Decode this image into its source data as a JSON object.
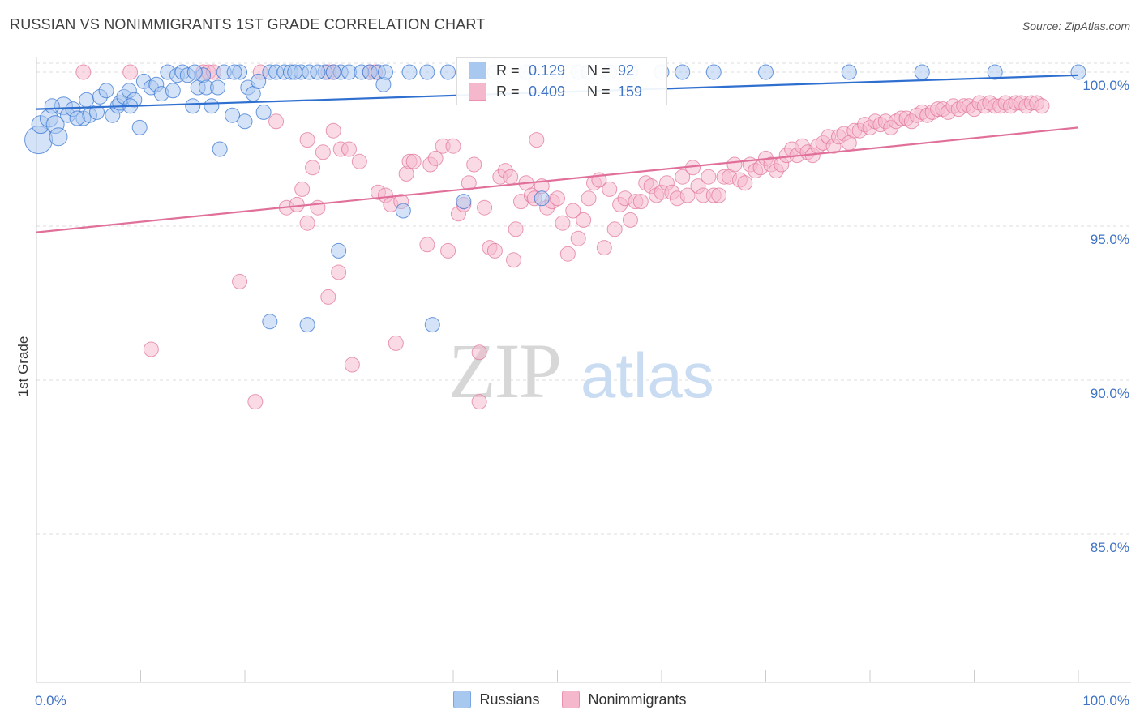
{
  "title": "RUSSIAN VS NONIMMIGRANTS 1ST GRADE CORRELATION CHART",
  "source": "Source: ZipAtlas.com",
  "watermark": {
    "zip": "ZIP",
    "atlas": "atlas"
  },
  "colors": {
    "blue_fill": "#a9c8f0",
    "blue_line": "#2f6fd0",
    "pink_fill": "#f5b7cb",
    "pink_line": "#e0709a",
    "axis_text": "#3f73c5",
    "grid": "#dddddd"
  },
  "stats": [
    {
      "r_label": "R =",
      "r_value": "0.129",
      "n_label": "N =",
      "n_value": "92"
    },
    {
      "r_label": "R =",
      "r_value": "0.409",
      "n_label": "N =",
      "n_value": "159"
    }
  ],
  "legend": [
    {
      "label": "Russians"
    },
    {
      "label": "Nonimmigrants"
    }
  ],
  "chart_data": {
    "type": "scatter",
    "title": "RUSSIAN VS NONIMMIGRANTS 1ST GRADE CORRELATION CHART",
    "xlabel": "",
    "ylabel": "1st Grade",
    "xlim": [
      0,
      100
    ],
    "ylim": [
      80.5,
      100.5
    ],
    "x_tick_labels": [
      "0.0%",
      "100.0%"
    ],
    "y_ticks": [
      85,
      90,
      95,
      100
    ],
    "y_tick_labels": [
      "85.0%",
      "90.0%",
      "95.0%",
      "100.0%"
    ],
    "grid": true,
    "legend_position": "bottom-center",
    "series": [
      {
        "name": "Russians",
        "trend": {
          "x": [
            0,
            100
          ],
          "y": [
            98.8,
            99.9
          ]
        },
        "points": [
          [
            0.2,
            97.8
          ],
          [
            0.4,
            98.3
          ],
          [
            1.2,
            98.5
          ],
          [
            1.8,
            98.3
          ],
          [
            2.1,
            97.9
          ],
          [
            2.6,
            98.9
          ],
          [
            3.0,
            98.6
          ],
          [
            3.5,
            98.8
          ],
          [
            4.5,
            98.5
          ],
          [
            4.8,
            99.1
          ],
          [
            5.1,
            98.6
          ],
          [
            5.8,
            98.7
          ],
          [
            6.1,
            99.2
          ],
          [
            6.7,
            99.4
          ],
          [
            7.3,
            98.6
          ],
          [
            7.8,
            98.9
          ],
          [
            8.0,
            99.0
          ],
          [
            8.4,
            99.2
          ],
          [
            8.9,
            99.4
          ],
          [
            9.4,
            99.1
          ],
          [
            9.9,
            98.2
          ],
          [
            10.3,
            99.7
          ],
          [
            11.0,
            99.5
          ],
          [
            11.5,
            99.6
          ],
          [
            12.0,
            99.3
          ],
          [
            12.6,
            100.0
          ],
          [
            13.1,
            99.4
          ],
          [
            13.5,
            99.9
          ],
          [
            14.0,
            100.0
          ],
          [
            14.5,
            99.9
          ],
          [
            15.0,
            98.9
          ],
          [
            15.5,
            99.5
          ],
          [
            16.0,
            99.9
          ],
          [
            16.3,
            99.5
          ],
          [
            16.8,
            98.9
          ],
          [
            17.4,
            99.5
          ],
          [
            17.6,
            97.5
          ],
          [
            18.0,
            100.0
          ],
          [
            18.8,
            98.6
          ],
          [
            19.5,
            100.0
          ],
          [
            20.0,
            98.4
          ],
          [
            20.3,
            99.5
          ],
          [
            20.8,
            99.3
          ],
          [
            21.3,
            99.7
          ],
          [
            21.8,
            98.7
          ],
          [
            22.4,
            100.0
          ],
          [
            23.0,
            100.0
          ],
          [
            23.8,
            100.0
          ],
          [
            24.4,
            100.0
          ],
          [
            25.4,
            100.0
          ],
          [
            26.2,
            100.0
          ],
          [
            27.7,
            100.0
          ],
          [
            29.2,
            100.0
          ],
          [
            29.0,
            94.2
          ],
          [
            30.0,
            100.0
          ],
          [
            31.2,
            100.0
          ],
          [
            32.0,
            100.0
          ],
          [
            32.8,
            100.0
          ],
          [
            33.3,
            99.6
          ],
          [
            33.5,
            100.0
          ],
          [
            35.8,
            100.0
          ],
          [
            35.2,
            95.5
          ],
          [
            37.5,
            100.0
          ],
          [
            38.0,
            91.8
          ],
          [
            39.5,
            100.0
          ],
          [
            41.0,
            95.8
          ],
          [
            44.0,
            100.0
          ],
          [
            47.0,
            100.0
          ],
          [
            48.5,
            95.9
          ],
          [
            50.0,
            100.0
          ],
          [
            52.0,
            100.0
          ],
          [
            53.0,
            100.0
          ],
          [
            55.0,
            100.0
          ],
          [
            57.0,
            100.0
          ],
          [
            60.0,
            100.0
          ],
          [
            62.0,
            100.0
          ],
          [
            65.0,
            100.0
          ],
          [
            70.0,
            100.0
          ],
          [
            78.0,
            100.0
          ],
          [
            85.0,
            100.0
          ],
          [
            92.0,
            100.0
          ],
          [
            100.0,
            100.0
          ],
          [
            22.4,
            91.9
          ],
          [
            26.0,
            91.8
          ],
          [
            1.5,
            98.9
          ],
          [
            3.9,
            98.5
          ],
          [
            9.0,
            98.9
          ],
          [
            15.2,
            100.0
          ],
          [
            19.0,
            100.0
          ],
          [
            24.8,
            100.0
          ],
          [
            27.0,
            100.0
          ],
          [
            28.5,
            100.0
          ]
        ]
      },
      {
        "name": "Nonimmigrants",
        "trend": {
          "x": [
            0,
            100
          ],
          "y": [
            94.8,
            98.2
          ]
        },
        "points": [
          [
            4.5,
            100.0
          ],
          [
            9.0,
            100.0
          ],
          [
            11.0,
            91.0
          ],
          [
            16.0,
            100.0
          ],
          [
            16.5,
            100.0
          ],
          [
            17.0,
            100.0
          ],
          [
            19.5,
            93.2
          ],
          [
            21.0,
            89.3
          ],
          [
            21.5,
            100.0
          ],
          [
            23.0,
            98.4
          ],
          [
            24.0,
            95.6
          ],
          [
            25.0,
            95.7
          ],
          [
            25.5,
            96.2
          ],
          [
            26.0,
            95.1
          ],
          [
            26.5,
            96.9
          ],
          [
            26.0,
            97.8
          ],
          [
            27.0,
            95.6
          ],
          [
            27.5,
            97.4
          ],
          [
            28.0,
            100.0
          ],
          [
            28.5,
            100.0
          ],
          [
            28.0,
            92.7
          ],
          [
            29.0,
            93.5
          ],
          [
            28.5,
            98.1
          ],
          [
            29.2,
            97.5
          ],
          [
            30.0,
            97.5
          ],
          [
            30.3,
            90.5
          ],
          [
            31.0,
            97.1
          ],
          [
            32.0,
            100.0
          ],
          [
            32.5,
            100.0
          ],
          [
            32.8,
            96.1
          ],
          [
            33.5,
            96.0
          ],
          [
            34.0,
            95.7
          ],
          [
            34.5,
            91.2
          ],
          [
            35.0,
            95.8
          ],
          [
            35.5,
            96.7
          ],
          [
            35.8,
            97.1
          ],
          [
            36.2,
            97.1
          ],
          [
            37.5,
            94.4
          ],
          [
            37.8,
            97.0
          ],
          [
            38.3,
            97.2
          ],
          [
            39.0,
            97.6
          ],
          [
            39.5,
            94.2
          ],
          [
            40.0,
            97.6
          ],
          [
            40.5,
            95.4
          ],
          [
            41.0,
            95.7
          ],
          [
            41.5,
            96.4
          ],
          [
            42.0,
            97.0
          ],
          [
            42.5,
            90.9
          ],
          [
            42.5,
            89.3
          ],
          [
            43.0,
            95.6
          ],
          [
            43.5,
            94.3
          ],
          [
            44.0,
            94.2
          ],
          [
            44.5,
            96.6
          ],
          [
            45.0,
            96.8
          ],
          [
            45.5,
            96.6
          ],
          [
            45.8,
            93.9
          ],
          [
            46.0,
            94.9
          ],
          [
            46.5,
            95.8
          ],
          [
            47.0,
            96.4
          ],
          [
            47.5,
            96.0
          ],
          [
            47.8,
            95.9
          ],
          [
            48.0,
            97.8
          ],
          [
            48.5,
            96.3
          ],
          [
            49.0,
            95.6
          ],
          [
            49.5,
            95.8
          ],
          [
            50.0,
            95.9
          ],
          [
            50.5,
            95.1
          ],
          [
            51.0,
            94.1
          ],
          [
            51.5,
            95.5
          ],
          [
            52.0,
            94.6
          ],
          [
            52.5,
            95.2
          ],
          [
            53.0,
            95.9
          ],
          [
            53.5,
            96.4
          ],
          [
            54.0,
            96.5
          ],
          [
            54.5,
            94.3
          ],
          [
            55.0,
            96.2
          ],
          [
            55.5,
            94.9
          ],
          [
            56.0,
            95.7
          ],
          [
            56.5,
            95.9
          ],
          [
            57.0,
            95.2
          ],
          [
            57.5,
            95.8
          ],
          [
            58.0,
            95.8
          ],
          [
            58.5,
            96.4
          ],
          [
            59.0,
            96.3
          ],
          [
            59.5,
            96.0
          ],
          [
            60.0,
            96.1
          ],
          [
            60.5,
            96.4
          ],
          [
            61.0,
            96.1
          ],
          [
            61.5,
            95.9
          ],
          [
            62.0,
            96.6
          ],
          [
            62.5,
            96.0
          ],
          [
            63.0,
            96.9
          ],
          [
            63.5,
            96.3
          ],
          [
            64.0,
            96.0
          ],
          [
            64.5,
            96.6
          ],
          [
            65.0,
            96.0
          ],
          [
            65.5,
            96.0
          ],
          [
            66.0,
            96.6
          ],
          [
            66.5,
            96.6
          ],
          [
            67.0,
            97.0
          ],
          [
            67.5,
            96.5
          ],
          [
            68.0,
            96.4
          ],
          [
            68.5,
            97.0
          ],
          [
            69.0,
            96.8
          ],
          [
            69.5,
            96.9
          ],
          [
            70.0,
            97.2
          ],
          [
            70.5,
            97.0
          ],
          [
            71.0,
            96.8
          ],
          [
            71.5,
            97.0
          ],
          [
            72.0,
            97.3
          ],
          [
            72.5,
            97.5
          ],
          [
            73.0,
            97.3
          ],
          [
            73.5,
            97.6
          ],
          [
            74.0,
            97.4
          ],
          [
            74.5,
            97.3
          ],
          [
            75.0,
            97.6
          ],
          [
            75.5,
            97.7
          ],
          [
            76.0,
            97.9
          ],
          [
            76.5,
            97.6
          ],
          [
            77.0,
            97.9
          ],
          [
            77.5,
            98.0
          ],
          [
            78.0,
            97.7
          ],
          [
            78.5,
            98.1
          ],
          [
            79.0,
            98.1
          ],
          [
            79.5,
            98.3
          ],
          [
            80.0,
            98.2
          ],
          [
            80.5,
            98.4
          ],
          [
            81.0,
            98.3
          ],
          [
            81.5,
            98.4
          ],
          [
            82.0,
            98.2
          ],
          [
            82.5,
            98.4
          ],
          [
            83.0,
            98.5
          ],
          [
            83.5,
            98.5
          ],
          [
            84.0,
            98.4
          ],
          [
            84.5,
            98.6
          ],
          [
            85.0,
            98.7
          ],
          [
            85.5,
            98.6
          ],
          [
            86.0,
            98.7
          ],
          [
            86.5,
            98.8
          ],
          [
            87.0,
            98.8
          ],
          [
            87.5,
            98.7
          ],
          [
            88.0,
            98.9
          ],
          [
            88.5,
            98.8
          ],
          [
            89.0,
            98.9
          ],
          [
            89.5,
            98.9
          ],
          [
            90.0,
            98.8
          ],
          [
            90.5,
            99.0
          ],
          [
            91.0,
            98.9
          ],
          [
            91.5,
            99.0
          ],
          [
            92.0,
            98.9
          ],
          [
            92.5,
            98.9
          ],
          [
            93.0,
            99.0
          ],
          [
            93.5,
            98.9
          ],
          [
            94.0,
            99.0
          ],
          [
            94.5,
            99.0
          ],
          [
            95.0,
            98.9
          ],
          [
            95.5,
            99.0
          ],
          [
            96.0,
            99.0
          ],
          [
            96.5,
            98.9
          ]
        ]
      }
    ]
  }
}
